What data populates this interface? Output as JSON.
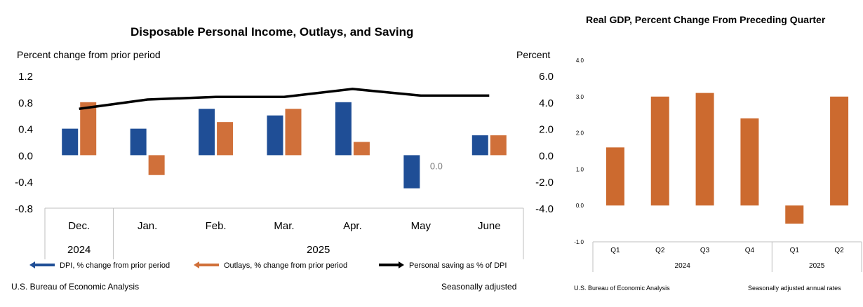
{
  "chart_data": [
    {
      "type": "bar",
      "title": "Disposable Personal Income, Outlays, and Saving",
      "ylabel_left": "Percent change from prior period",
      "ylabel_right": "Percent",
      "ylim_left": [
        -0.8,
        1.2
      ],
      "yticks_left": [
        "1.2",
        "0.8",
        "0.4",
        "0.0",
        "-0.4",
        "-0.8"
      ],
      "ylim_right": [
        -4.0,
        6.0
      ],
      "yticks_right": [
        "6.0",
        "4.0",
        "2.0",
        "0.0",
        "-2.0",
        "-4.0"
      ],
      "categories": [
        "Dec.",
        "Jan.",
        "Feb.",
        "Mar.",
        "Apr.",
        "May",
        "June"
      ],
      "years": [
        {
          "label": "2024",
          "span": [
            0,
            0
          ]
        },
        {
          "label": "2025",
          "span": [
            1,
            6
          ]
        }
      ],
      "series": [
        {
          "name": "DPI, % change from prior period",
          "type": "bar",
          "axis": "left",
          "color": "#1f4e96",
          "values": [
            0.4,
            0.4,
            0.7,
            0.6,
            0.8,
            -0.5,
            0.3
          ]
        },
        {
          "name": "Outlays, % change from prior period",
          "type": "bar",
          "axis": "left",
          "color": "#d0703a",
          "values": [
            0.8,
            -0.3,
            0.5,
            0.7,
            0.2,
            0.0,
            0.3
          ]
        },
        {
          "name": "Personal saving as % of DPI",
          "type": "line",
          "axis": "right",
          "color": "#000000",
          "values": [
            3.5,
            4.2,
            4.4,
            4.4,
            5.0,
            4.5,
            4.5
          ]
        }
      ],
      "annotations": [
        {
          "text": "0.0",
          "category": "May",
          "series": "Outlays, % change from prior period"
        }
      ],
      "source": "U.S. Bureau of Economic Analysis",
      "note": "Seasonally adjusted"
    },
    {
      "type": "bar",
      "title": "Real GDP, Percent Change From Preceding Quarter",
      "ylim": [
        -1.0,
        4.0
      ],
      "yticks": [
        "4.0",
        "3.0",
        "2.0",
        "1.0",
        "0.0",
        "-1.0"
      ],
      "categories": [
        "Q1",
        "Q2",
        "Q3",
        "Q4",
        "Q1",
        "Q2"
      ],
      "years": [
        {
          "label": "2024",
          "span": [
            0,
            3
          ]
        },
        {
          "label": "2025",
          "span": [
            4,
            5
          ]
        }
      ],
      "series": [
        {
          "color": "#cc6a2f",
          "values": [
            1.6,
            3.0,
            3.1,
            2.4,
            -0.5,
            3.0
          ]
        }
      ],
      "source": "U.S. Bureau of Economic Analysis",
      "note": "Seasonally adjusted annual rates"
    }
  ]
}
